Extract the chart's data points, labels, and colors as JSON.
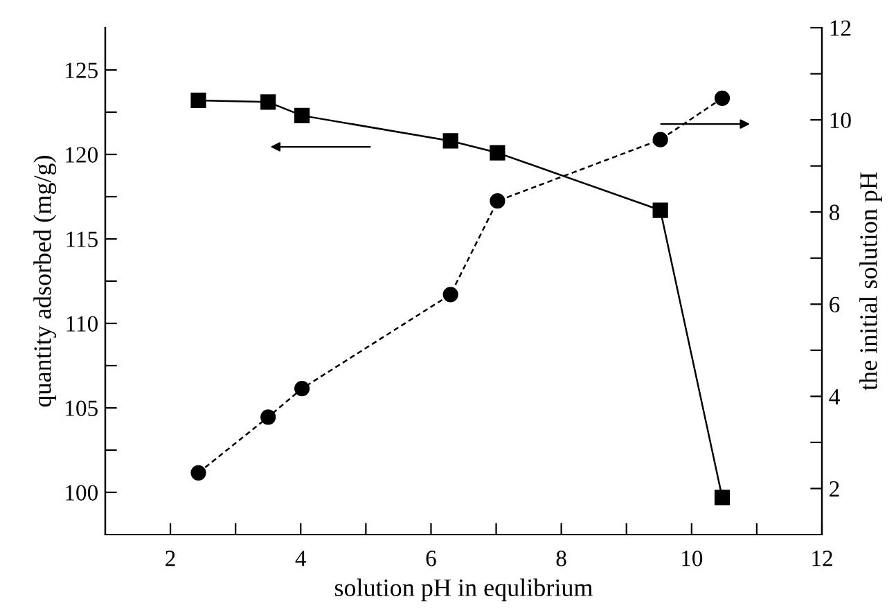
{
  "chart_data": {
    "type": "line",
    "xlabel": "solution pH in equlibrium",
    "ylabel": "quantity adsorbed (mg/g)",
    "y2label": "the initial solution pH",
    "series": [
      {
        "color": "#000000",
        "marker": "square",
        "line_style": "solid",
        "x": [
          2.43,
          3.5,
          4.02,
          6.3,
          7.02,
          9.52,
          10.47
        ],
        "values": [
          123.2,
          123.1,
          122.3,
          120.8,
          120.1,
          116.7,
          99.7
        ]
      },
      {
        "color": "#000000",
        "marker": "circle",
        "line_style": "dashed",
        "axis": "y2",
        "x": [
          2.43,
          3.5,
          4.02,
          6.3,
          7.02,
          9.52,
          10.47
        ],
        "values": [
          2.34,
          3.55,
          4.17,
          6.21,
          8.24,
          9.57,
          10.47
        ]
      }
    ],
    "xlim": [
      1,
      12
    ],
    "xticks": [
      2,
      {
        "value": 3,
        "label": null
      },
      4,
      {
        "value": 5,
        "label": null
      },
      6,
      {
        "value": 7,
        "label": null
      },
      8,
      {
        "value": 9,
        "label": null
      },
      10,
      {
        "value": 11,
        "label": null
      },
      12
    ],
    "ylim": [
      97.5,
      127.5
    ],
    "yticks": [
      100,
      {
        "value": 102.5,
        "label": null
      },
      105,
      {
        "value": 107.5,
        "label": null
      },
      110,
      {
        "value": 112.5,
        "label": null
      },
      115,
      {
        "value": 117.5,
        "label": null
      },
      120,
      {
        "value": 122.5,
        "label": null
      },
      125
    ],
    "y2lim": [
      1,
      12
    ],
    "y2ticks": [
      2,
      {
        "value": 3,
        "label": null
      },
      4,
      {
        "value": 5,
        "label": null
      },
      6,
      {
        "value": 7,
        "label": null
      },
      8,
      {
        "value": 9,
        "label": null
      },
      10,
      {
        "value": 11,
        "label": null
      },
      12
    ],
    "grid": false,
    "legend": false
  }
}
